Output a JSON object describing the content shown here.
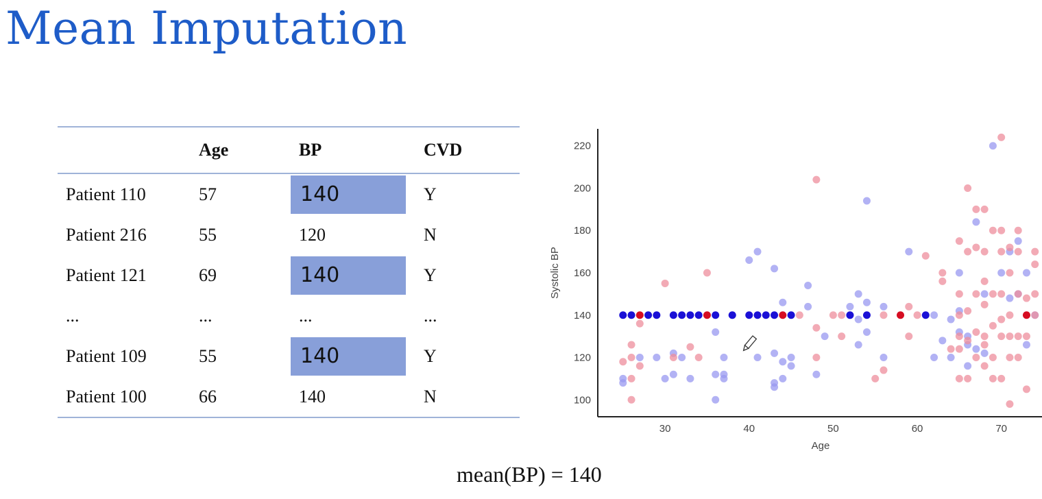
{
  "title": "Mean Imputation",
  "table": {
    "headers": [
      "",
      "Age",
      "BP",
      "CVD"
    ],
    "rows": [
      {
        "patient": "Patient 110",
        "age": "57",
        "bp": "140",
        "cvd": "Y",
        "imputed": true
      },
      {
        "patient": "Patient 216",
        "age": "55",
        "bp": "120",
        "cvd": "N",
        "imputed": false
      },
      {
        "patient": "Patient 121",
        "age": "69",
        "bp": "140",
        "cvd": "Y",
        "imputed": true
      },
      {
        "patient": "...",
        "age": "...",
        "bp": "...",
        "cvd": "...",
        "imputed": false
      },
      {
        "patient": "Patient 109",
        "age": "55",
        "bp": "140",
        "cvd": "Y",
        "imputed": true
      },
      {
        "patient": "Patient 100",
        "age": "66",
        "bp": "140",
        "cvd": "N",
        "imputed": false
      }
    ]
  },
  "caption": "mean(BP) = 140",
  "chart_data": {
    "type": "scatter",
    "xlabel": "Age",
    "ylabel": "Systolic BP",
    "xlim": [
      22,
      75
    ],
    "ylim": [
      92,
      228
    ],
    "xticks": [
      30,
      40,
      50,
      60,
      70
    ],
    "yticks": [
      100,
      120,
      140,
      160,
      180,
      200,
      220
    ],
    "colors": {
      "blue_observed": "#9898f0",
      "red_observed": "#ee8d9c",
      "blue_imputed": "#1a10d6",
      "red_imputed": "#d60d22"
    },
    "series": [
      {
        "color_key": "blue_observed",
        "points": [
          [
            25,
            110
          ],
          [
            25,
            108
          ],
          [
            27,
            120
          ],
          [
            29,
            120
          ],
          [
            30,
            110
          ],
          [
            31,
            112
          ],
          [
            31,
            122
          ],
          [
            32,
            120
          ],
          [
            33,
            110
          ],
          [
            36,
            132
          ],
          [
            36,
            100
          ],
          [
            36,
            112
          ],
          [
            37,
            112
          ],
          [
            37,
            110
          ],
          [
            37,
            120
          ],
          [
            38,
            140
          ],
          [
            40,
            166
          ],
          [
            41,
            170
          ],
          [
            41,
            120
          ],
          [
            43,
            162
          ],
          [
            43,
            122
          ],
          [
            43,
            106
          ],
          [
            43,
            108
          ],
          [
            44,
            146
          ],
          [
            44,
            118
          ],
          [
            44,
            110
          ],
          [
            45,
            120
          ],
          [
            45,
            116
          ],
          [
            47,
            154
          ],
          [
            47,
            144
          ],
          [
            48,
            112
          ],
          [
            49,
            130
          ],
          [
            52,
            140
          ],
          [
            52,
            144
          ],
          [
            53,
            126
          ],
          [
            53,
            150
          ],
          [
            53,
            138
          ],
          [
            54,
            194
          ],
          [
            54,
            146
          ],
          [
            54,
            132
          ],
          [
            56,
            144
          ],
          [
            56,
            120
          ],
          [
            59,
            170
          ],
          [
            62,
            140
          ],
          [
            62,
            120
          ],
          [
            63,
            128
          ],
          [
            64,
            120
          ],
          [
            64,
            138
          ],
          [
            65,
            160
          ],
          [
            65,
            142
          ],
          [
            65,
            132
          ],
          [
            66,
            126
          ],
          [
            66,
            130
          ],
          [
            66,
            116
          ],
          [
            67,
            184
          ],
          [
            67,
            124
          ],
          [
            68,
            150
          ],
          [
            68,
            122
          ],
          [
            69,
            220
          ],
          [
            70,
            160
          ],
          [
            71,
            170
          ],
          [
            71,
            148
          ],
          [
            72,
            175
          ],
          [
            72,
            150
          ],
          [
            73,
            160
          ],
          [
            73,
            126
          ],
          [
            74,
            140
          ]
        ]
      },
      {
        "color_key": "red_observed",
        "points": [
          [
            25,
            118
          ],
          [
            26,
            126
          ],
          [
            26,
            120
          ],
          [
            26,
            110
          ],
          [
            26,
            100
          ],
          [
            27,
            136
          ],
          [
            27,
            116
          ],
          [
            30,
            155
          ],
          [
            31,
            120
          ],
          [
            33,
            125
          ],
          [
            34,
            120
          ],
          [
            35,
            160
          ],
          [
            46,
            140
          ],
          [
            48,
            204
          ],
          [
            48,
            134
          ],
          [
            48,
            120
          ],
          [
            50,
            140
          ],
          [
            51,
            130
          ],
          [
            51,
            140
          ],
          [
            55,
            110
          ],
          [
            56,
            140
          ],
          [
            56,
            114
          ],
          [
            59,
            144
          ],
          [
            59,
            130
          ],
          [
            60,
            140
          ],
          [
            61,
            168
          ],
          [
            63,
            160
          ],
          [
            63,
            156
          ],
          [
            64,
            124
          ],
          [
            65,
            175
          ],
          [
            65,
            150
          ],
          [
            65,
            140
          ],
          [
            65,
            130
          ],
          [
            65,
            124
          ],
          [
            65,
            110
          ],
          [
            66,
            200
          ],
          [
            66,
            170
          ],
          [
            66,
            142
          ],
          [
            66,
            128
          ],
          [
            66,
            110
          ],
          [
            67,
            190
          ],
          [
            67,
            172
          ],
          [
            67,
            150
          ],
          [
            67,
            132
          ],
          [
            67,
            120
          ],
          [
            68,
            190
          ],
          [
            68,
            170
          ],
          [
            68,
            156
          ],
          [
            68,
            145
          ],
          [
            68,
            130
          ],
          [
            68,
            126
          ],
          [
            68,
            116
          ],
          [
            69,
            180
          ],
          [
            69,
            150
          ],
          [
            69,
            135
          ],
          [
            69,
            120
          ],
          [
            69,
            110
          ],
          [
            70,
            224
          ],
          [
            70,
            180
          ],
          [
            70,
            170
          ],
          [
            70,
            150
          ],
          [
            70,
            138
          ],
          [
            70,
            130
          ],
          [
            70,
            110
          ],
          [
            71,
            172
          ],
          [
            71,
            160
          ],
          [
            71,
            140
          ],
          [
            71,
            130
          ],
          [
            71,
            120
          ],
          [
            71,
            98
          ],
          [
            72,
            180
          ],
          [
            72,
            170
          ],
          [
            72,
            150
          ],
          [
            72,
            130
          ],
          [
            72,
            120
          ],
          [
            73,
            148
          ],
          [
            73,
            130
          ],
          [
            73,
            105
          ],
          [
            74,
            170
          ],
          [
            74,
            164
          ],
          [
            74,
            150
          ],
          [
            74,
            140
          ]
        ]
      },
      {
        "color_key": "blue_imputed",
        "points": [
          [
            25,
            140
          ],
          [
            26,
            140
          ],
          [
            28,
            140
          ],
          [
            29,
            140
          ],
          [
            31,
            140
          ],
          [
            32,
            140
          ],
          [
            33,
            140
          ],
          [
            34,
            140
          ],
          [
            36,
            140
          ],
          [
            38,
            140
          ],
          [
            40,
            140
          ],
          [
            41,
            140
          ],
          [
            42,
            140
          ],
          [
            43,
            140
          ],
          [
            45,
            140
          ],
          [
            52,
            140
          ],
          [
            54,
            140
          ],
          [
            61,
            140
          ]
        ]
      },
      {
        "color_key": "red_imputed",
        "points": [
          [
            27,
            140
          ],
          [
            35,
            140
          ],
          [
            44,
            140
          ],
          [
            58,
            140
          ],
          [
            73,
            140
          ]
        ]
      }
    ]
  }
}
